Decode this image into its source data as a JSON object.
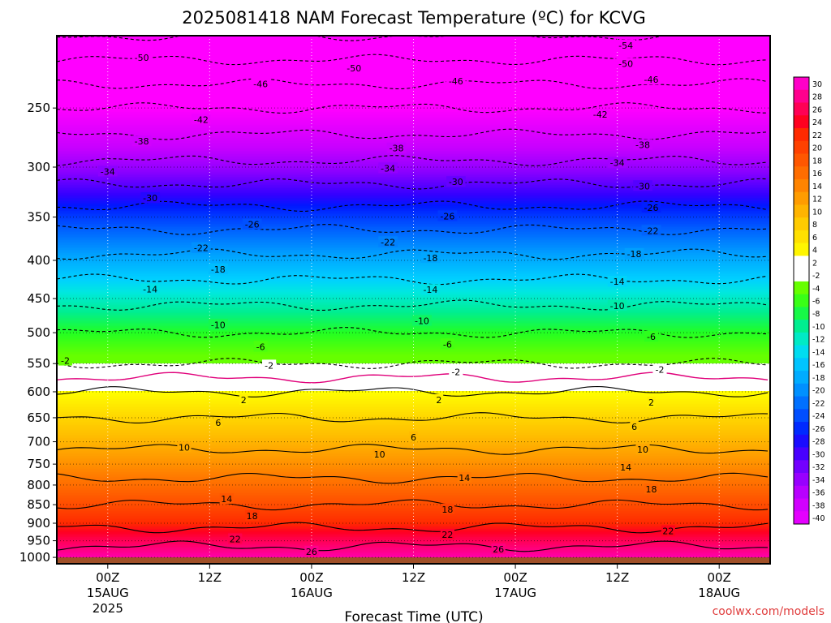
{
  "chart_data": {
    "type": "heatmap",
    "title": "2025081418 NAM Forecast Temperature (ºC) for KCVG",
    "xlabel": "Forecast Time (UTC)",
    "ylabel": "",
    "credit": "coolwx.com/models",
    "x_ticks": [
      {
        "hour": 6,
        "label": "00Z",
        "label2": "15AUG",
        "label3": "2025"
      },
      {
        "hour": 18,
        "label": "12Z",
        "label2": "",
        "label3": ""
      },
      {
        "hour": 30,
        "label": "00Z",
        "label2": "16AUG",
        "label3": ""
      },
      {
        "hour": 42,
        "label": "12Z",
        "label2": "",
        "label3": ""
      },
      {
        "hour": 54,
        "label": "00Z",
        "label2": "17AUG",
        "label3": ""
      },
      {
        "hour": 66,
        "label": "12Z",
        "label2": "",
        "label3": ""
      },
      {
        "hour": 78,
        "label": "00Z",
        "label2": "18AUG",
        "label3": ""
      }
    ],
    "xlim_hours": [
      0,
      84
    ],
    "y_ticks": [
      1000,
      950,
      900,
      850,
      800,
      750,
      700,
      650,
      600,
      550,
      500,
      450,
      400,
      350,
      300,
      250
    ],
    "ylim_hpa": [
      1020,
      200
    ],
    "scale": "log",
    "colorbar_levels": [
      30,
      28,
      26,
      24,
      22,
      20,
      18,
      16,
      14,
      12,
      10,
      8,
      6,
      4,
      2,
      -2,
      -4,
      -6,
      -8,
      -10,
      -12,
      -14,
      -16,
      -18,
      -20,
      -22,
      -24,
      -26,
      -28,
      -30,
      -32,
      -34,
      -36,
      -38,
      -40
    ],
    "profile": [
      {
        "p": 1000,
        "t": 28
      },
      {
        "p": 950,
        "t": 25
      },
      {
        "p": 900,
        "t": 21
      },
      {
        "p": 850,
        "t": 18
      },
      {
        "p": 800,
        "t": 15
      },
      {
        "p": 750,
        "t": 12
      },
      {
        "p": 700,
        "t": 9
      },
      {
        "p": 650,
        "t": 6
      },
      {
        "p": 600,
        "t": 2
      },
      {
        "p": 550,
        "t": -2
      },
      {
        "p": 500,
        "t": -6
      },
      {
        "p": 450,
        "t": -11
      },
      {
        "p": 400,
        "t": -17
      },
      {
        "p": 350,
        "t": -24
      },
      {
        "p": 300,
        "t": -33
      },
      {
        "p": 250,
        "t": -42
      },
      {
        "p": 200,
        "t": -54
      }
    ],
    "contour_labels": [
      {
        "v": -54,
        "h": 67,
        "p": 206
      },
      {
        "v": -50,
        "h": 10,
        "p": 214
      },
      {
        "v": -50,
        "h": 35,
        "p": 221
      },
      {
        "v": -50,
        "h": 67,
        "p": 218
      },
      {
        "v": -46,
        "h": 24,
        "p": 232
      },
      {
        "v": -46,
        "h": 47,
        "p": 230
      },
      {
        "v": -46,
        "h": 70,
        "p": 229
      },
      {
        "v": -42,
        "h": 17,
        "p": 259
      },
      {
        "v": -42,
        "h": 64,
        "p": 255
      },
      {
        "v": -38,
        "h": 10,
        "p": 277
      },
      {
        "v": -38,
        "h": 40,
        "p": 283
      },
      {
        "v": -38,
        "h": 69,
        "p": 280
      },
      {
        "v": -34,
        "h": 6,
        "p": 304
      },
      {
        "v": -34,
        "h": 39,
        "p": 301
      },
      {
        "v": -34,
        "h": 66,
        "p": 296
      },
      {
        "v": -30,
        "h": 11,
        "p": 330
      },
      {
        "v": -30,
        "h": 47,
        "p": 314
      },
      {
        "v": -30,
        "h": 69,
        "p": 318
      },
      {
        "v": -26,
        "h": 23,
        "p": 358
      },
      {
        "v": -26,
        "h": 46,
        "p": 349
      },
      {
        "v": -26,
        "h": 70,
        "p": 340
      },
      {
        "v": -22,
        "h": 17,
        "p": 385
      },
      {
        "v": -22,
        "h": 39,
        "p": 378
      },
      {
        "v": -22,
        "h": 70,
        "p": 365
      },
      {
        "v": -18,
        "h": 19,
        "p": 411
      },
      {
        "v": -18,
        "h": 44,
        "p": 397
      },
      {
        "v": -18,
        "h": 68,
        "p": 392
      },
      {
        "v": -14,
        "h": 11,
        "p": 437
      },
      {
        "v": -14,
        "h": 44,
        "p": 438
      },
      {
        "v": -14,
        "h": 66,
        "p": 427
      },
      {
        "v": -10,
        "h": 19,
        "p": 488
      },
      {
        "v": -10,
        "h": 43,
        "p": 482
      },
      {
        "v": -10,
        "h": 66,
        "p": 460
      },
      {
        "v": -6,
        "h": 24,
        "p": 522
      },
      {
        "v": -6,
        "h": 46,
        "p": 518
      },
      {
        "v": -6,
        "h": 70,
        "p": 506
      },
      {
        "v": -2,
        "h": 1,
        "p": 545
      },
      {
        "v": -2,
        "h": 25,
        "p": 553
      },
      {
        "v": -2,
        "h": 47,
        "p": 564
      },
      {
        "v": -2,
        "h": 71,
        "p": 560
      },
      {
        "v": 2,
        "h": 22,
        "p": 615
      },
      {
        "v": 2,
        "h": 45,
        "p": 615
      },
      {
        "v": 2,
        "h": 70,
        "p": 620
      },
      {
        "v": 6,
        "h": 19,
        "p": 660
      },
      {
        "v": 6,
        "h": 42,
        "p": 690
      },
      {
        "v": 6,
        "h": 68,
        "p": 668
      },
      {
        "v": 10,
        "h": 15,
        "p": 712
      },
      {
        "v": 10,
        "h": 38,
        "p": 728
      },
      {
        "v": 10,
        "h": 69,
        "p": 717
      },
      {
        "v": 14,
        "h": 20,
        "p": 835
      },
      {
        "v": 14,
        "h": 48,
        "p": 782
      },
      {
        "v": 14,
        "h": 67,
        "p": 757
      },
      {
        "v": 18,
        "h": 23,
        "p": 880
      },
      {
        "v": 18,
        "h": 46,
        "p": 862
      },
      {
        "v": 18,
        "h": 70,
        "p": 810
      },
      {
        "v": 22,
        "h": 21,
        "p": 945
      },
      {
        "v": 22,
        "h": 46,
        "p": 932
      },
      {
        "v": 22,
        "h": 72,
        "p": 922
      },
      {
        "v": 26,
        "h": 30,
        "p": 982
      },
      {
        "v": 26,
        "h": 52,
        "p": 975
      }
    ]
  }
}
